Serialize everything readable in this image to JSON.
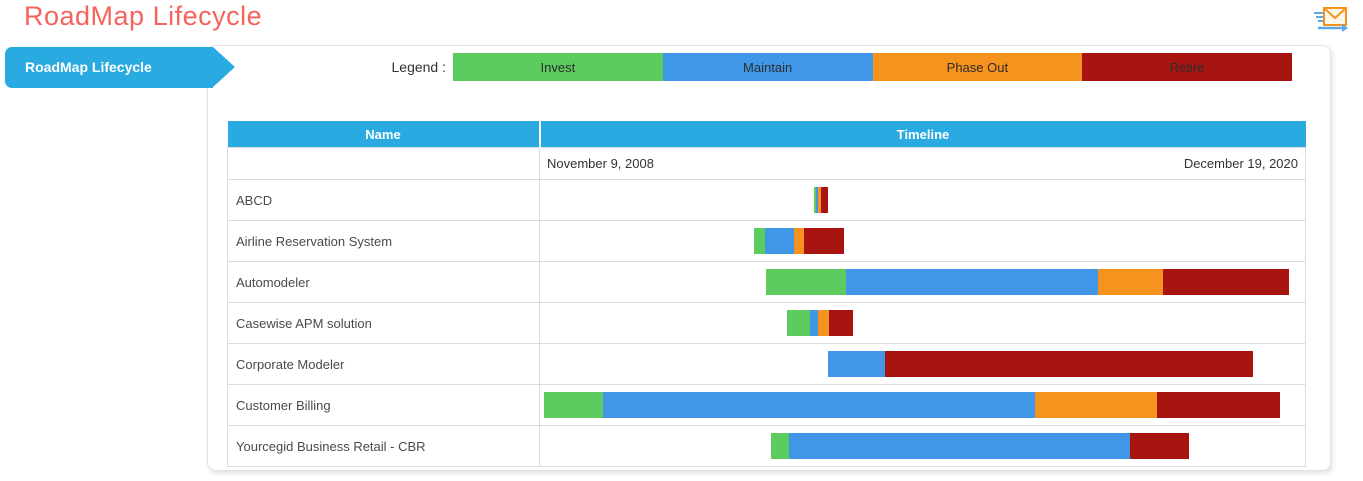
{
  "header": {
    "title": "RoadMap Lifecycle"
  },
  "sidebar": {
    "active_tab": "RoadMap Lifecycle"
  },
  "legend": {
    "label": "Legend :",
    "items": [
      {
        "id": "invest",
        "label": "Invest",
        "color": "#5ccc5e"
      },
      {
        "id": "maintain",
        "label": "Maintain",
        "color": "#4097e8"
      },
      {
        "id": "phase_out",
        "label": "Phase Out",
        "color": "#f6921e"
      },
      {
        "id": "retire",
        "label": "Retire",
        "color": "#a81511"
      }
    ]
  },
  "table": {
    "columns": [
      "Name",
      "Timeline"
    ],
    "timeline_start": "November 9, 2008",
    "timeline_end": "December 19, 2020",
    "rows": [
      {
        "name": "ABCD",
        "bar": {
          "offset_pct": 35.81,
          "segments": [
            {
              "phase": "invest",
              "pct": 0.26
            },
            {
              "phase": "maintain",
              "pct": 0.26
            },
            {
              "phase": "phase_out",
              "pct": 0.39
            },
            {
              "phase": "retire",
              "pct": 0.91
            }
          ]
        }
      },
      {
        "name": "Airline Reservation System",
        "bar": {
          "offset_pct": 27.99,
          "segments": [
            {
              "phase": "invest",
              "pct": 1.43
            },
            {
              "phase": "maintain",
              "pct": 3.78
            },
            {
              "phase": "phase_out",
              "pct": 1.3
            },
            {
              "phase": "retire",
              "pct": 5.21
            }
          ]
        }
      },
      {
        "name": "Automodeler",
        "bar": {
          "offset_pct": 29.56,
          "segments": [
            {
              "phase": "invest",
              "pct": 10.42
            },
            {
              "phase": "maintain",
              "pct": 32.94
            },
            {
              "phase": "phase_out",
              "pct": 8.46
            },
            {
              "phase": "retire",
              "pct": 16.54
            }
          ]
        }
      },
      {
        "name": "Casewise APM solution",
        "bar": {
          "offset_pct": 32.29,
          "segments": [
            {
              "phase": "invest",
              "pct": 2.99
            },
            {
              "phase": "maintain",
              "pct": 1.04
            },
            {
              "phase": "phase_out",
              "pct": 1.43
            },
            {
              "phase": "retire",
              "pct": 3.13
            }
          ]
        }
      },
      {
        "name": "Corporate Modeler",
        "bar": {
          "offset_pct": 37.63,
          "segments": [
            {
              "phase": "maintain",
              "pct": 7.42
            },
            {
              "phase": "retire",
              "pct": 48.18
            }
          ]
        }
      },
      {
        "name": "Customer Billing",
        "bar": {
          "offset_pct": 0.52,
          "segments": [
            {
              "phase": "invest",
              "pct": 7.68
            },
            {
              "phase": "maintain",
              "pct": 56.51
            },
            {
              "phase": "phase_out",
              "pct": 15.89
            },
            {
              "phase": "retire",
              "pct": 16.15
            }
          ]
        }
      },
      {
        "name": "Yourcegid Business Retail - CBR",
        "bar": {
          "offset_pct": 30.21,
          "segments": [
            {
              "phase": "invest",
              "pct": 2.34
            },
            {
              "phase": "maintain",
              "pct": 44.53
            },
            {
              "phase": "retire",
              "pct": 7.81
            }
          ]
        }
      }
    ]
  },
  "colors": {
    "title": "#f4645d",
    "accent_blue": "#29abe2",
    "invest": "#5ccc5e",
    "maintain": "#4097e8",
    "phase_out": "#f6921e",
    "retire": "#a81511"
  },
  "icons": {
    "send_email": "send-email-icon"
  }
}
